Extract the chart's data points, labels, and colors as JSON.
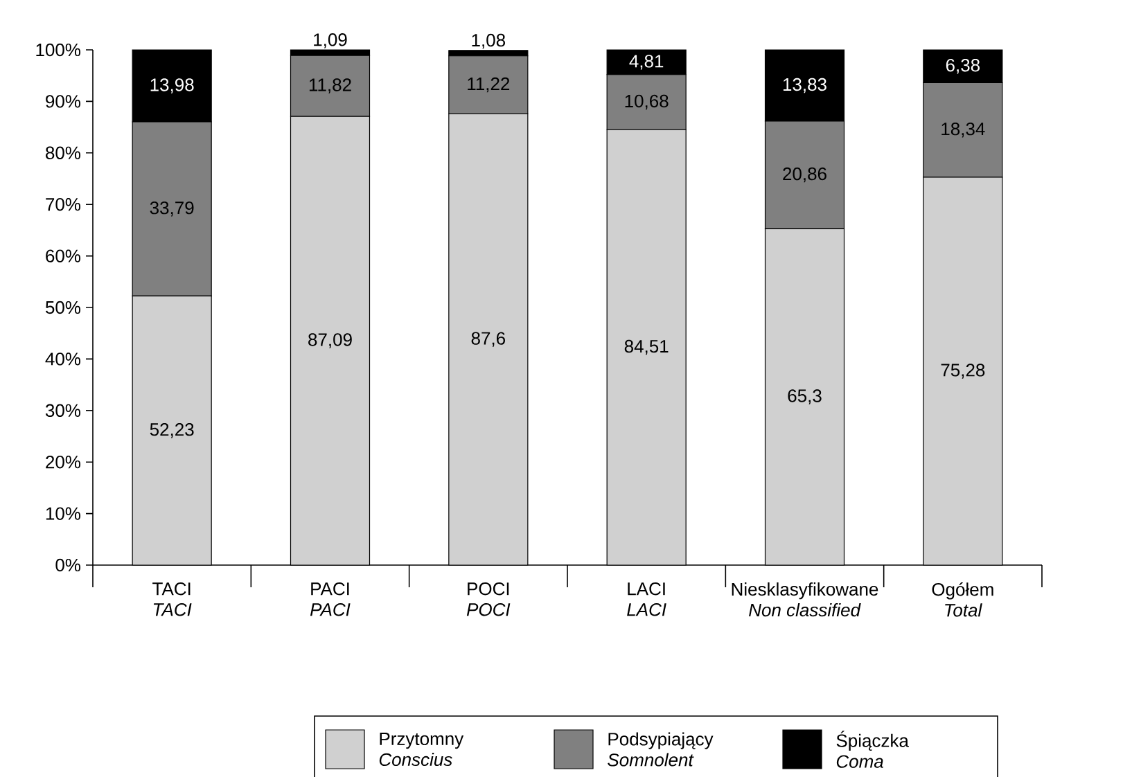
{
  "chart_data": {
    "type": "bar",
    "stacked": true,
    "categories": [
      "TACI\n*TACI*",
      "PACI\n*PACI*",
      "POCI\n*POCI*",
      "LACI\n*LACI*",
      "Niesklasyfikowane\n*Non classified*",
      "Ogółem\n*Total*"
    ],
    "series": [
      {
        "name": "Przytomny\n*Conscius*",
        "color": "#d0d0d0",
        "values": [
          52.23,
          87.09,
          87.6,
          84.51,
          65.3,
          75.28
        ],
        "value_labels": [
          "52,23",
          "87,09",
          "87,6",
          "84,51",
          "65,3",
          "75,28"
        ]
      },
      {
        "name": "Podsypiający\n*Somnolent*",
        "color": "#808080",
        "values": [
          33.79,
          11.82,
          11.22,
          10.68,
          20.86,
          18.34
        ],
        "value_labels": [
          "33,79",
          "11,82",
          "11,22",
          "10,68",
          "20,86",
          "18,34"
        ]
      },
      {
        "name": "Śpiączka\n*Coma*",
        "color": "#000000",
        "values": [
          13.98,
          1.09,
          1.08,
          4.81,
          13.83,
          6.38
        ],
        "value_labels": [
          "13,98",
          "1,09",
          "1,08",
          "4,81",
          "13,83",
          "6,38"
        ]
      }
    ],
    "ylim": [
      0,
      100
    ],
    "yticks": [
      {
        "value": 0,
        "label": "0%"
      },
      {
        "value": 10,
        "label": "10%"
      },
      {
        "value": 20,
        "label": "20%"
      },
      {
        "value": 30,
        "label": "30%"
      },
      {
        "value": 40,
        "label": "40%"
      },
      {
        "value": 50,
        "label": "50%"
      },
      {
        "value": 60,
        "label": "60%"
      },
      {
        "value": 70,
        "label": "70%"
      },
      {
        "value": 80,
        "label": "80%"
      },
      {
        "value": 90,
        "label": "90%"
      },
      {
        "value": 100,
        "label": "100%"
      }
    ],
    "legend": "bottom"
  }
}
